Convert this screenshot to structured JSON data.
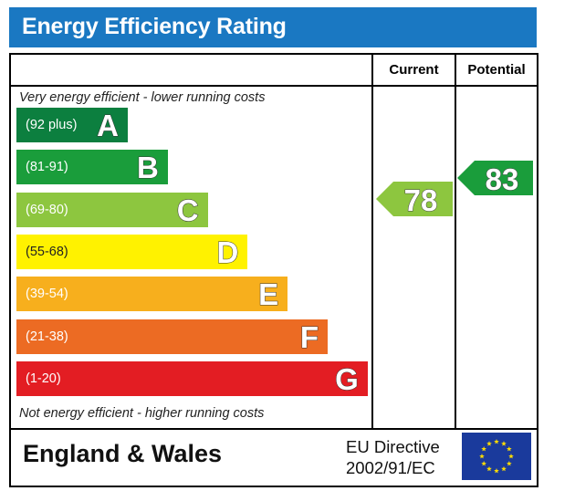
{
  "title": "Energy Efficiency Rating",
  "columns": {
    "current": "Current",
    "potential": "Potential"
  },
  "notes": {
    "top": "Very energy efficient - lower running costs",
    "bottom": "Not energy efficient - higher running costs"
  },
  "bands": [
    {
      "letter": "A",
      "range": "(92 plus)",
      "color": "#0c7f3f"
    },
    {
      "letter": "B",
      "range": "(81-91)",
      "color": "#1a9d3b"
    },
    {
      "letter": "C",
      "range": "(69-80)",
      "color": "#8dc63f"
    },
    {
      "letter": "D",
      "range": "(55-68)",
      "color": "#fff200"
    },
    {
      "letter": "E",
      "range": "(39-54)",
      "color": "#f7af1d"
    },
    {
      "letter": "F",
      "range": "(21-38)",
      "color": "#ec6b23"
    },
    {
      "letter": "G",
      "range": "(1-20)",
      "color": "#e31d23"
    }
  ],
  "ratings": {
    "current": {
      "value": "78",
      "band": "C",
      "color": "#8dc63f"
    },
    "potential": {
      "value": "83",
      "band": "B",
      "color": "#1a9d3b"
    }
  },
  "footer": {
    "region": "England & Wales",
    "directive_line1": "EU Directive",
    "directive_line2": "2002/91/EC"
  },
  "colors": {
    "title_bar": "#1a78c2",
    "eu_flag": "#1a3a9c",
    "eu_stars": "#ffdd00"
  },
  "icons": {
    "flag": "eu-flag-icon"
  }
}
